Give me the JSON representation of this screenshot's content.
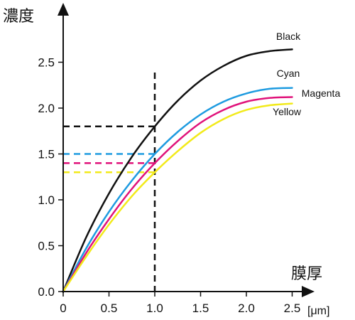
{
  "chart_data": {
    "type": "line",
    "ylabel": "濃度",
    "xlabel": "膜厚",
    "x_unit": "[μm]",
    "xlim": [
      0,
      2.6
    ],
    "ylim": [
      0,
      3.0
    ],
    "x_ticks": [
      "0",
      "0.5",
      "1.0",
      "1.5",
      "2.0",
      "2.5"
    ],
    "x_tick_values": [
      0,
      0.5,
      1.0,
      1.5,
      2.0,
      2.5
    ],
    "y_ticks": [
      "0.0",
      "0.5",
      "1.0",
      "1.5",
      "2.0",
      "2.5"
    ],
    "y_tick_values": [
      0,
      0.5,
      1.0,
      1.5,
      2.0,
      2.5
    ],
    "grid": false,
    "reference_x": 1.0,
    "series": [
      {
        "name": "Black",
        "color": "#111111",
        "x": [
          0,
          0.25,
          0.5,
          0.75,
          1.0,
          1.25,
          1.5,
          1.75,
          2.0,
          2.25,
          2.5
        ],
        "y": [
          0,
          0.59,
          1.07,
          1.47,
          1.8,
          2.08,
          2.3,
          2.46,
          2.57,
          2.62,
          2.64
        ]
      },
      {
        "name": "Cyan",
        "color": "#1e9be0",
        "x": [
          0,
          0.25,
          0.5,
          0.75,
          1.0,
          1.25,
          1.5,
          1.75,
          2.0,
          2.25,
          2.5
        ],
        "y": [
          0,
          0.47,
          0.87,
          1.21,
          1.5,
          1.74,
          1.93,
          2.07,
          2.16,
          2.21,
          2.22
        ]
      },
      {
        "name": "Magenta",
        "color": "#e0127a",
        "x": [
          0,
          0.25,
          0.5,
          0.75,
          1.0,
          1.25,
          1.5,
          1.75,
          2.0,
          2.25,
          2.5
        ],
        "y": [
          0,
          0.42,
          0.79,
          1.12,
          1.4,
          1.64,
          1.84,
          1.98,
          2.07,
          2.11,
          2.12
        ]
      },
      {
        "name": "Yellow",
        "color": "#f2ea1a",
        "x": [
          0,
          0.25,
          0.5,
          0.75,
          1.0,
          1.25,
          1.5,
          1.75,
          2.0,
          2.25,
          2.5
        ],
        "y": [
          0,
          0.38,
          0.73,
          1.04,
          1.3,
          1.53,
          1.73,
          1.88,
          1.98,
          2.03,
          2.05
        ]
      }
    ]
  }
}
